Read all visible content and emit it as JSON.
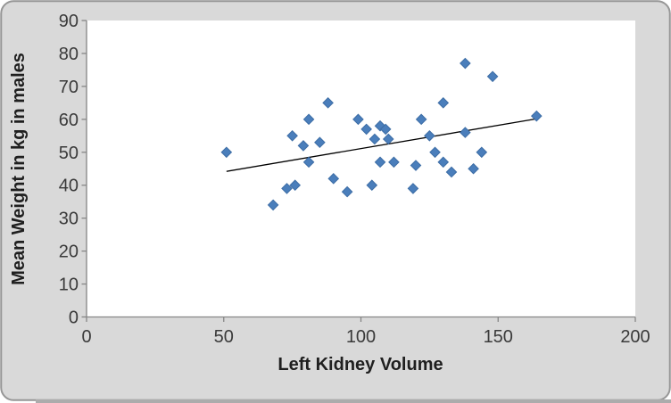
{
  "chart_data": {
    "type": "scatter",
    "title": "",
    "xlabel": "Left Kidney Volume",
    "ylabel": "Mean Weight in kg in males",
    "xlim": [
      0,
      200
    ],
    "ylim": [
      0,
      90
    ],
    "xticks": [
      0,
      50,
      100,
      150,
      200
    ],
    "yticks": [
      0,
      10,
      20,
      30,
      40,
      50,
      60,
      70,
      80,
      90
    ],
    "grid": false,
    "legend": false,
    "marker": "diamond",
    "points": [
      [
        51,
        50
      ],
      [
        68,
        34
      ],
      [
        73,
        39
      ],
      [
        75,
        55
      ],
      [
        76,
        40
      ],
      [
        79,
        52
      ],
      [
        81,
        47
      ],
      [
        81,
        60
      ],
      [
        85,
        53
      ],
      [
        88,
        65
      ],
      [
        90,
        42
      ],
      [
        95,
        38
      ],
      [
        99,
        60
      ],
      [
        102,
        57
      ],
      [
        104,
        40
      ],
      [
        105,
        54
      ],
      [
        107,
        47
      ],
      [
        107,
        58
      ],
      [
        109,
        57
      ],
      [
        110,
        54
      ],
      [
        112,
        47
      ],
      [
        119,
        39
      ],
      [
        120,
        46
      ],
      [
        122,
        60
      ],
      [
        125,
        55
      ],
      [
        127,
        50
      ],
      [
        130,
        47
      ],
      [
        130,
        65
      ],
      [
        133,
        44
      ],
      [
        138,
        56
      ],
      [
        138,
        77
      ],
      [
        141,
        45
      ],
      [
        144,
        50
      ],
      [
        148,
        73
      ],
      [
        164,
        61
      ]
    ],
    "trendline": {
      "x1": 51,
      "y1": 44.2,
      "x2": 165,
      "y2": 60.3
    }
  },
  "colors": {
    "chart_bg": "#D9D9D9",
    "plot_bg": "#FFFFFF",
    "frame_stroke": "#969696",
    "bottom_edge": "#ACACAC",
    "axis": "#868686",
    "marker_fill": "#4A7EBB",
    "marker_edge": "#3D6DA5",
    "trend_color": "#000000"
  }
}
